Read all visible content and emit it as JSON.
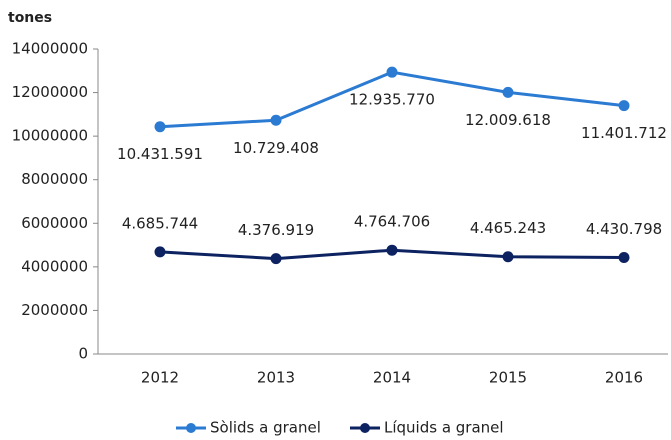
{
  "chart_data": {
    "type": "line",
    "ylabel": "tones",
    "categories": [
      "2012",
      "2013",
      "2014",
      "2015",
      "2016"
    ],
    "series": [
      {
        "name": "Sòlids a granel",
        "color": "#2b7bd3",
        "values": [
          10431591,
          10729408,
          12935770,
          12009618,
          11401712
        ],
        "value_labels": [
          "10.431.591",
          "10.729.408",
          "12.935.770",
          "12.009.618",
          "11.401.712"
        ]
      },
      {
        "name": "Líquids a granel",
        "color": "#0c2261",
        "values": [
          4685744,
          4376919,
          4764706,
          4465243,
          4430798
        ],
        "value_labels": [
          "4.685.744",
          "4.376.919",
          "4.764.706",
          "4.465.243",
          "4.430.798"
        ]
      }
    ],
    "ylim": [
      0,
      14000000
    ],
    "yticks": [
      0,
      2000000,
      4000000,
      6000000,
      8000000,
      10000000,
      12000000,
      14000000
    ],
    "grid": false,
    "legend": "bottom"
  }
}
